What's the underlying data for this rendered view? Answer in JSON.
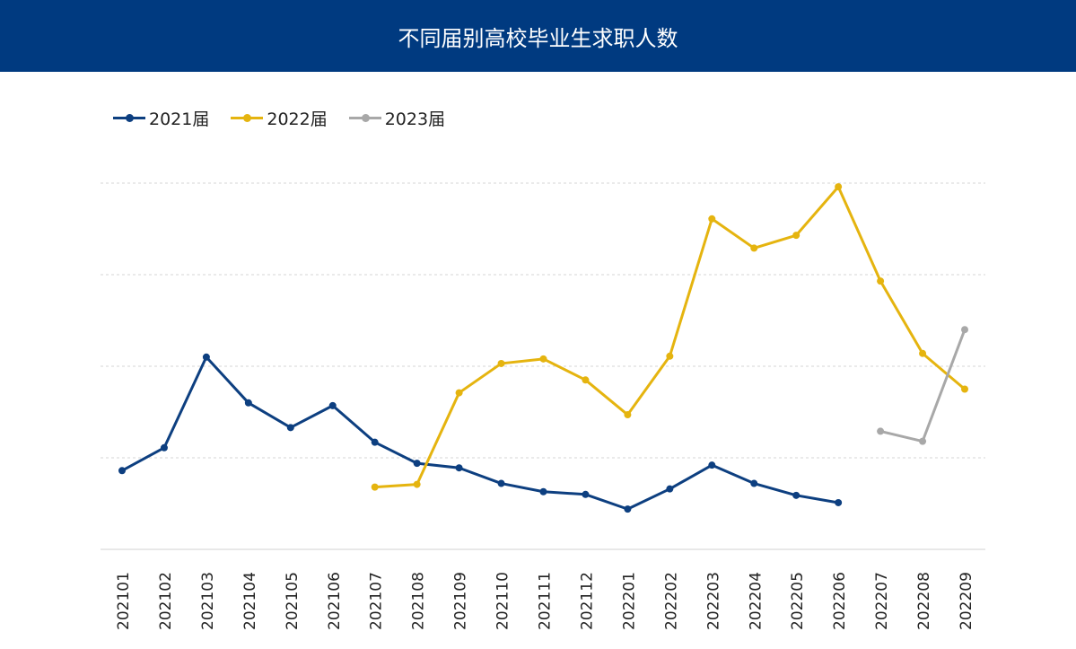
{
  "chart_data": {
    "type": "line",
    "title": "不同届别高校毕业生求职人数",
    "xlabel": "",
    "ylabel": "",
    "ylim": [
      0,
      4
    ],
    "y_ticks_labeled": false,
    "grid": "horizontal dashed",
    "legend": "top-left",
    "categories": [
      "202101",
      "202102",
      "202103",
      "202104",
      "202105",
      "202106",
      "202107",
      "202108",
      "202109",
      "202110",
      "202111",
      "202112",
      "202201",
      "202202",
      "202203",
      "202204",
      "202205",
      "202206",
      "202207",
      "202208",
      "202209"
    ],
    "series": [
      {
        "name": "2021届",
        "color": "#0d3f80",
        "values": [
          0.86,
          1.11,
          2.1,
          1.6,
          1.33,
          1.57,
          1.17,
          0.94,
          0.89,
          0.72,
          0.63,
          0.6,
          0.44,
          0.66,
          0.92,
          0.72,
          0.59,
          0.51,
          null,
          null,
          null
        ]
      },
      {
        "name": "2022届",
        "color": "#e5b40f",
        "values": [
          null,
          null,
          null,
          null,
          null,
          null,
          0.68,
          0.71,
          1.71,
          2.03,
          2.08,
          1.85,
          1.47,
          2.11,
          3.61,
          3.29,
          3.43,
          3.96,
          2.93,
          2.14,
          1.75
        ]
      },
      {
        "name": "2023届",
        "color": "#a8a8a8",
        "values": [
          null,
          null,
          null,
          null,
          null,
          null,
          null,
          null,
          null,
          null,
          null,
          null,
          null,
          null,
          null,
          null,
          null,
          null,
          1.29,
          1.18,
          2.4
        ]
      }
    ]
  }
}
